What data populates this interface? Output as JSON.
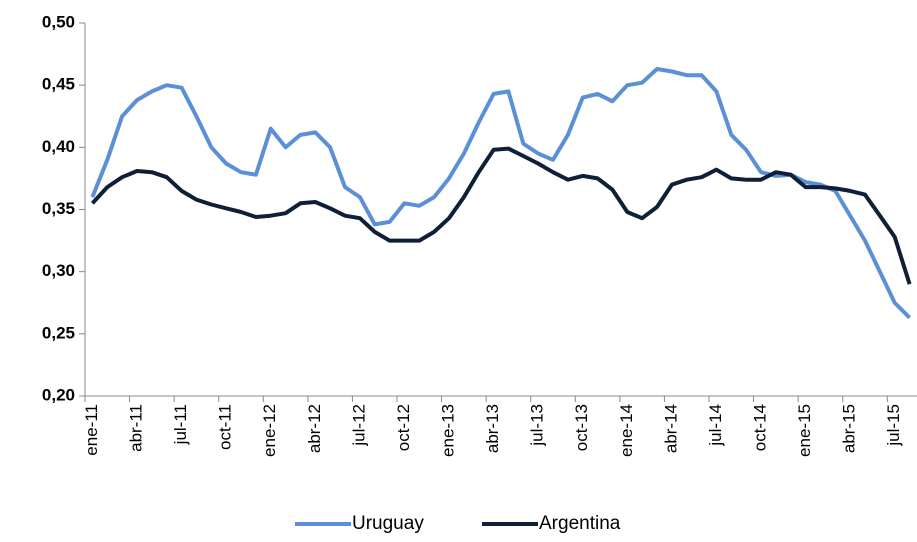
{
  "chart_data": {
    "type": "line",
    "categories": [
      "ene-11",
      null,
      null,
      "abr-11",
      null,
      null,
      "jul-11",
      null,
      null,
      "oct-11",
      null,
      null,
      "ene-12",
      null,
      null,
      "abr-12",
      null,
      null,
      "jul-12",
      null,
      null,
      "oct-12",
      null,
      null,
      "ene-13",
      null,
      null,
      "abr-13",
      null,
      null,
      "jul-13",
      null,
      null,
      "oct-13",
      null,
      null,
      "ene-14",
      null,
      null,
      "abr-14",
      null,
      null,
      "jul-14",
      null,
      null,
      "oct-14",
      null,
      null,
      "ene-15",
      null,
      null,
      "abr-15",
      null,
      null,
      "jul-15",
      null
    ],
    "series": [
      {
        "name": "Uruguay",
        "color": "#5b8fd6",
        "values": [
          0.36,
          0.39,
          0.425,
          0.438,
          0.445,
          0.45,
          0.448,
          0.425,
          0.4,
          0.387,
          0.38,
          0.378,
          0.415,
          0.4,
          0.41,
          0.412,
          0.4,
          0.368,
          0.36,
          0.338,
          0.34,
          0.355,
          0.353,
          0.36,
          0.375,
          0.395,
          0.42,
          0.443,
          0.445,
          0.403,
          0.395,
          0.39,
          0.41,
          0.44,
          0.443,
          0.437,
          0.45,
          0.452,
          0.463,
          0.461,
          0.458,
          0.458,
          0.445,
          0.41,
          0.398,
          0.38,
          0.377,
          0.378,
          0.372,
          0.37,
          0.365,
          0.345,
          0.325,
          0.3,
          0.275,
          0.263
        ]
      },
      {
        "name": "Argentina",
        "color": "#0f1f38",
        "values": [
          0.355,
          0.368,
          0.376,
          0.381,
          0.38,
          0.376,
          0.365,
          0.358,
          0.354,
          0.351,
          0.348,
          0.344,
          0.345,
          0.347,
          0.355,
          0.356,
          0.351,
          0.345,
          0.343,
          0.332,
          0.325,
          0.325,
          0.325,
          0.332,
          0.343,
          0.36,
          0.38,
          0.398,
          0.399,
          0.393,
          0.387,
          0.38,
          0.374,
          0.377,
          0.375,
          0.366,
          0.348,
          0.343,
          0.352,
          0.37,
          0.374,
          0.376,
          0.382,
          0.375,
          0.374,
          0.374,
          0.38,
          0.378,
          0.368,
          0.368,
          0.367,
          0.365,
          0.362,
          0.345,
          0.328,
          0.29
        ]
      }
    ],
    "ylim": [
      0.2,
      0.5
    ],
    "yticks": [
      {
        "value": 0.2,
        "label": "0,20"
      },
      {
        "value": 0.25,
        "label": "0,25"
      },
      {
        "value": 0.3,
        "label": "0,30"
      },
      {
        "value": 0.35,
        "label": "0,35"
      },
      {
        "value": 0.4,
        "label": "0,40"
      },
      {
        "value": 0.45,
        "label": "0,45"
      },
      {
        "value": 0.5,
        "label": "0,50"
      }
    ],
    "grid": false,
    "legend": "bottom"
  }
}
